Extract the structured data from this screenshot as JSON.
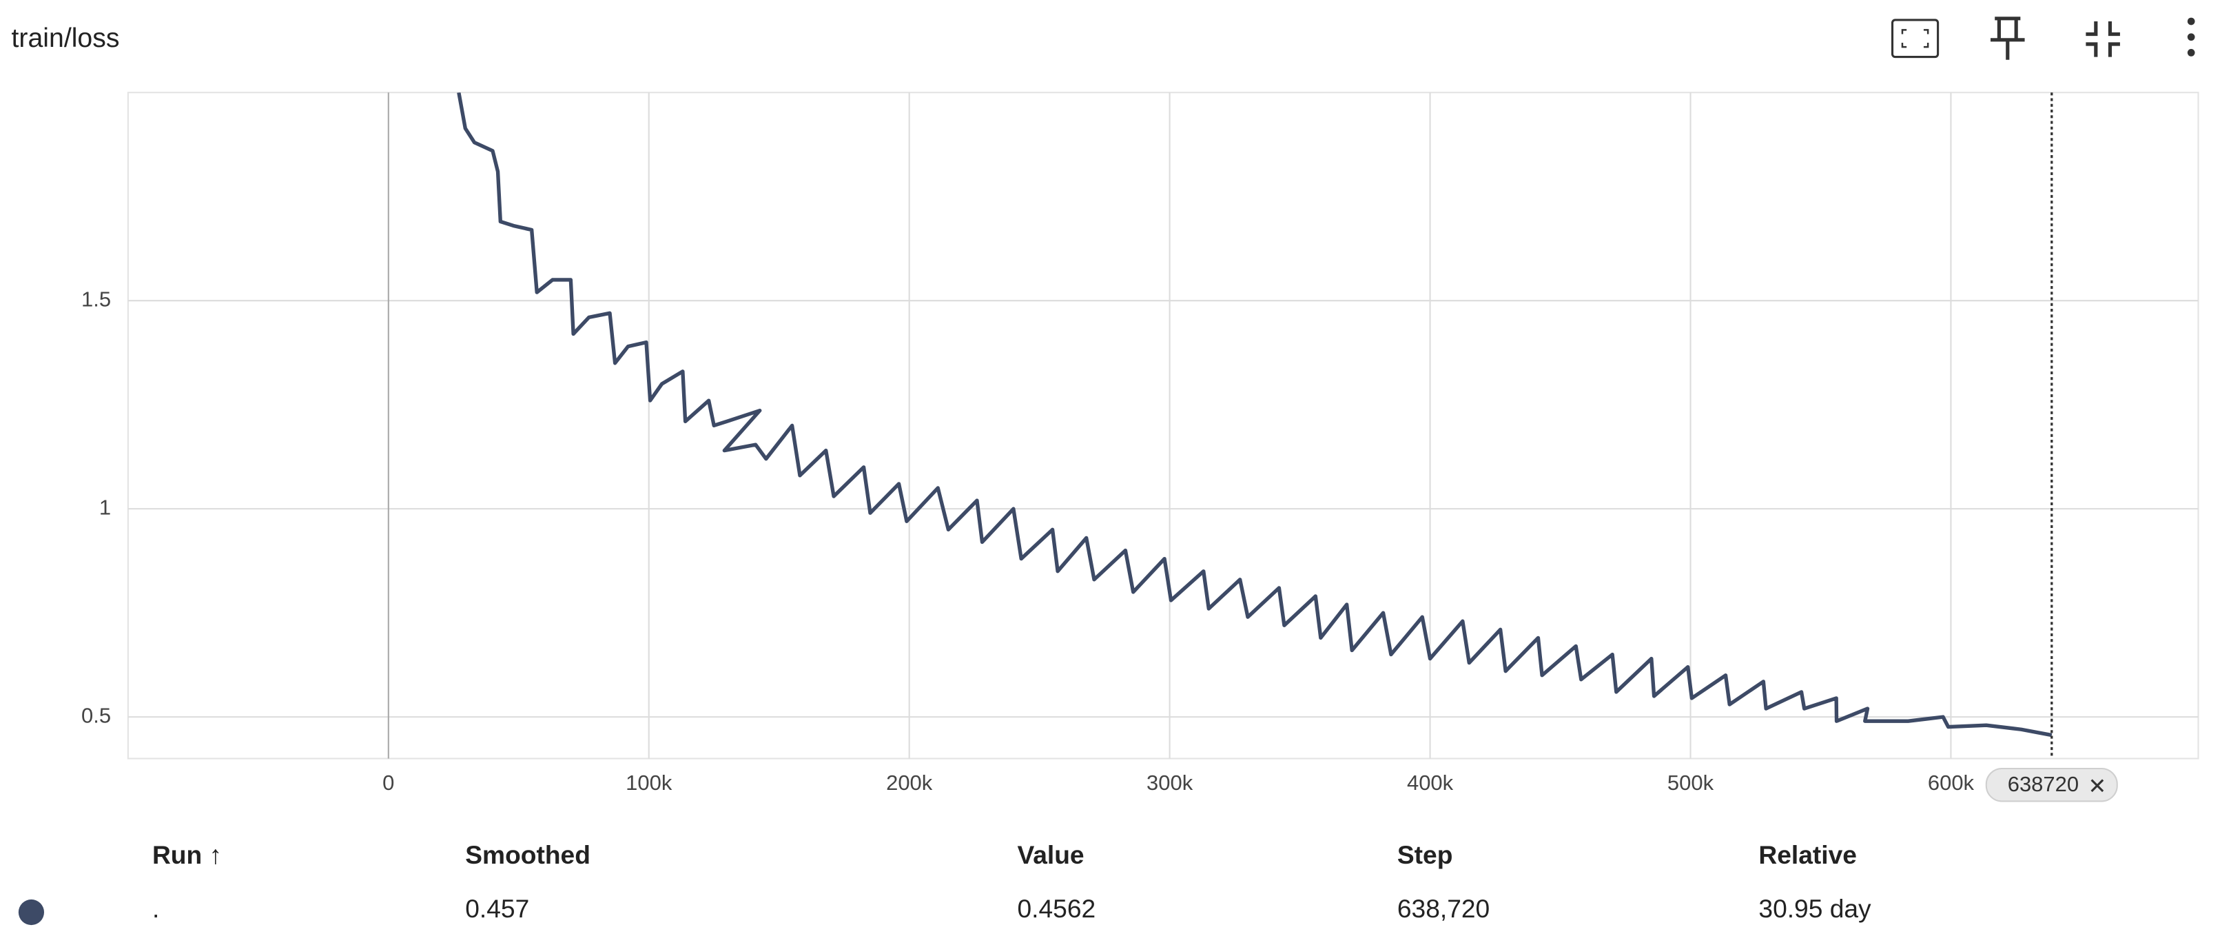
{
  "title": "train/loss",
  "chart_data": {
    "type": "line",
    "xlim": [
      -100000,
      695000
    ],
    "ylim": [
      0.4,
      2.0
    ],
    "xticks": [
      {
        "value": 0,
        "label": "0"
      },
      {
        "value": 100000,
        "label": "100k"
      },
      {
        "value": 200000,
        "label": "200k"
      },
      {
        "value": 300000,
        "label": "300k"
      },
      {
        "value": 400000,
        "label": "400k"
      },
      {
        "value": 500000,
        "label": "500k"
      },
      {
        "value": 600000,
        "label": "600k"
      }
    ],
    "yticks": [
      0.5,
      1,
      1.5
    ],
    "grid": true,
    "cursor": 638720,
    "series": [
      {
        "color": "#3d4a66",
        "x": [
          27000,
          29500,
          33000,
          40000,
          42000,
          43000,
          48000,
          55000,
          57000,
          63000,
          70000,
          71000,
          77000,
          85000,
          87000,
          92000,
          99000,
          100500,
          105000,
          113000,
          114000,
          123000,
          125000,
          130000,
          142600,
          129000,
          141000,
          145000,
          155000,
          158000,
          168000,
          171000,
          182500,
          185000,
          196000,
          199000,
          211000,
          215000,
          226000,
          228000,
          240000,
          243000,
          255000,
          257000,
          268000,
          271000,
          283000,
          286000,
          298000,
          300500,
          313000,
          315000,
          327000,
          330000,
          342000,
          344000,
          356000,
          358000,
          368000,
          370000,
          382000,
          385000,
          397000,
          400000,
          412500,
          415000,
          427000,
          429000,
          441500,
          443000,
          456000,
          458000,
          470000,
          471500,
          485000,
          486000,
          499000,
          500500,
          513500,
          515000,
          528000,
          529000,
          542600,
          543700,
          556000,
          556100,
          568000,
          567000,
          583600,
          597000,
          599000,
          613600,
          627000,
          638720
        ],
        "values": [
          2.0,
          1.914,
          1.88,
          1.86,
          1.81,
          1.69,
          1.68,
          1.67,
          1.52,
          1.55,
          1.55,
          1.42,
          1.46,
          1.47,
          1.35,
          1.39,
          1.4,
          1.26,
          1.3,
          1.33,
          1.21,
          1.26,
          1.2,
          1.21,
          1.236,
          1.14,
          1.154,
          1.12,
          1.2,
          1.08,
          1.14,
          1.03,
          1.1,
          0.99,
          1.06,
          0.97,
          1.05,
          0.95,
          1.02,
          0.92,
          1.0,
          0.88,
          0.95,
          0.85,
          0.93,
          0.83,
          0.9,
          0.8,
          0.88,
          0.78,
          0.85,
          0.76,
          0.83,
          0.74,
          0.81,
          0.72,
          0.79,
          0.69,
          0.77,
          0.66,
          0.75,
          0.65,
          0.74,
          0.64,
          0.73,
          0.63,
          0.71,
          0.61,
          0.69,
          0.6,
          0.67,
          0.59,
          0.65,
          0.56,
          0.64,
          0.55,
          0.62,
          0.545,
          0.6,
          0.53,
          0.585,
          0.52,
          0.56,
          0.52,
          0.545,
          0.49,
          0.52,
          0.49,
          0.49,
          0.5,
          0.476,
          0.48,
          0.47,
          0.4562
        ]
      }
    ]
  },
  "table": {
    "columns": [
      "Run ↑",
      "Smoothed",
      "Value",
      "Step",
      "Relative"
    ],
    "rows": [
      [
        ".",
        "0.457",
        "0.4562",
        "638,720",
        "30.95 day"
      ]
    ]
  }
}
